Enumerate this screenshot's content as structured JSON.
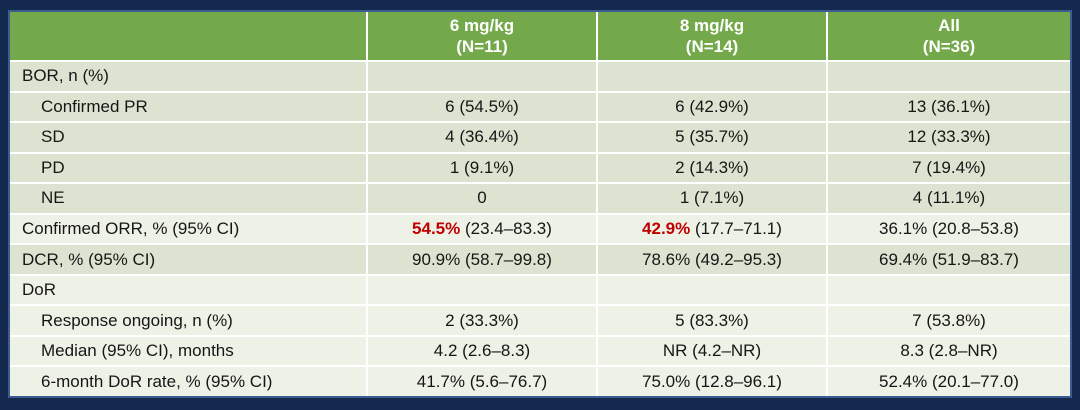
{
  "chart_data": {
    "type": "table",
    "columns": [
      {
        "label": ""
      },
      {
        "label": "6 mg/kg",
        "sublabel": "(N=11)"
      },
      {
        "label": "8 mg/kg",
        "sublabel": "(N=14)"
      },
      {
        "label": "All",
        "sublabel": "(N=36)"
      }
    ],
    "rows": [
      {
        "label": "BOR, n (%)",
        "values": [
          "",
          "",
          ""
        ]
      },
      {
        "label": "Confirmed PR",
        "values": [
          "6 (54.5%)",
          "6 (42.9%)",
          "13 (36.1%)"
        ]
      },
      {
        "label": "SD",
        "values": [
          "4 (36.4%)",
          "5 (35.7%)",
          "12 (33.3%)"
        ]
      },
      {
        "label": "PD",
        "values": [
          "1 (9.1%)",
          "2 (14.3%)",
          "7 (19.4%)"
        ]
      },
      {
        "label": "NE",
        "values": [
          "0",
          "1 (7.1%)",
          "4 (11.1%)"
        ]
      },
      {
        "label": "Confirmed ORR, % (95% CI)",
        "values": [
          {
            "hl": "54.5%",
            "rest": " (23.4–83.3)"
          },
          {
            "hl": "42.9%",
            "rest": " (17.7–71.1)"
          },
          "36.1% (20.8–53.8)"
        ]
      },
      {
        "label": "DCR, % (95% CI)",
        "values": [
          "90.9% (58.7–99.8)",
          "78.6% (49.2–95.3)",
          "69.4% (51.9–83.7)"
        ]
      },
      {
        "label": "DoR",
        "values": [
          "",
          "",
          ""
        ]
      },
      {
        "label": "Response ongoing, n (%)",
        "values": [
          "2 (33.3%)",
          "5 (83.3%)",
          "7 (53.8%)"
        ]
      },
      {
        "label": "Median (95% CI), months",
        "values": [
          "4.2 (2.6–8.3)",
          "NR (4.2–NR)",
          "8.3 (2.8–NR)"
        ]
      },
      {
        "label": "6-month DoR rate, % (95% CI)",
        "values": [
          "41.7% (5.6–76.7)",
          "75.0% (12.8–96.1)",
          "52.4% (20.1–77.0)"
        ]
      }
    ]
  },
  "colors": {
    "background_navy": "#13294E",
    "header_bg": "#74A94B",
    "header_text": "#FFFFFF",
    "row_green": "#DCE4D1",
    "row_light": "#EDF1E6",
    "divider": "#FFFFFF",
    "highlight_red": "#C00000",
    "text": "#161616",
    "border_blue": "#3E5C92"
  }
}
